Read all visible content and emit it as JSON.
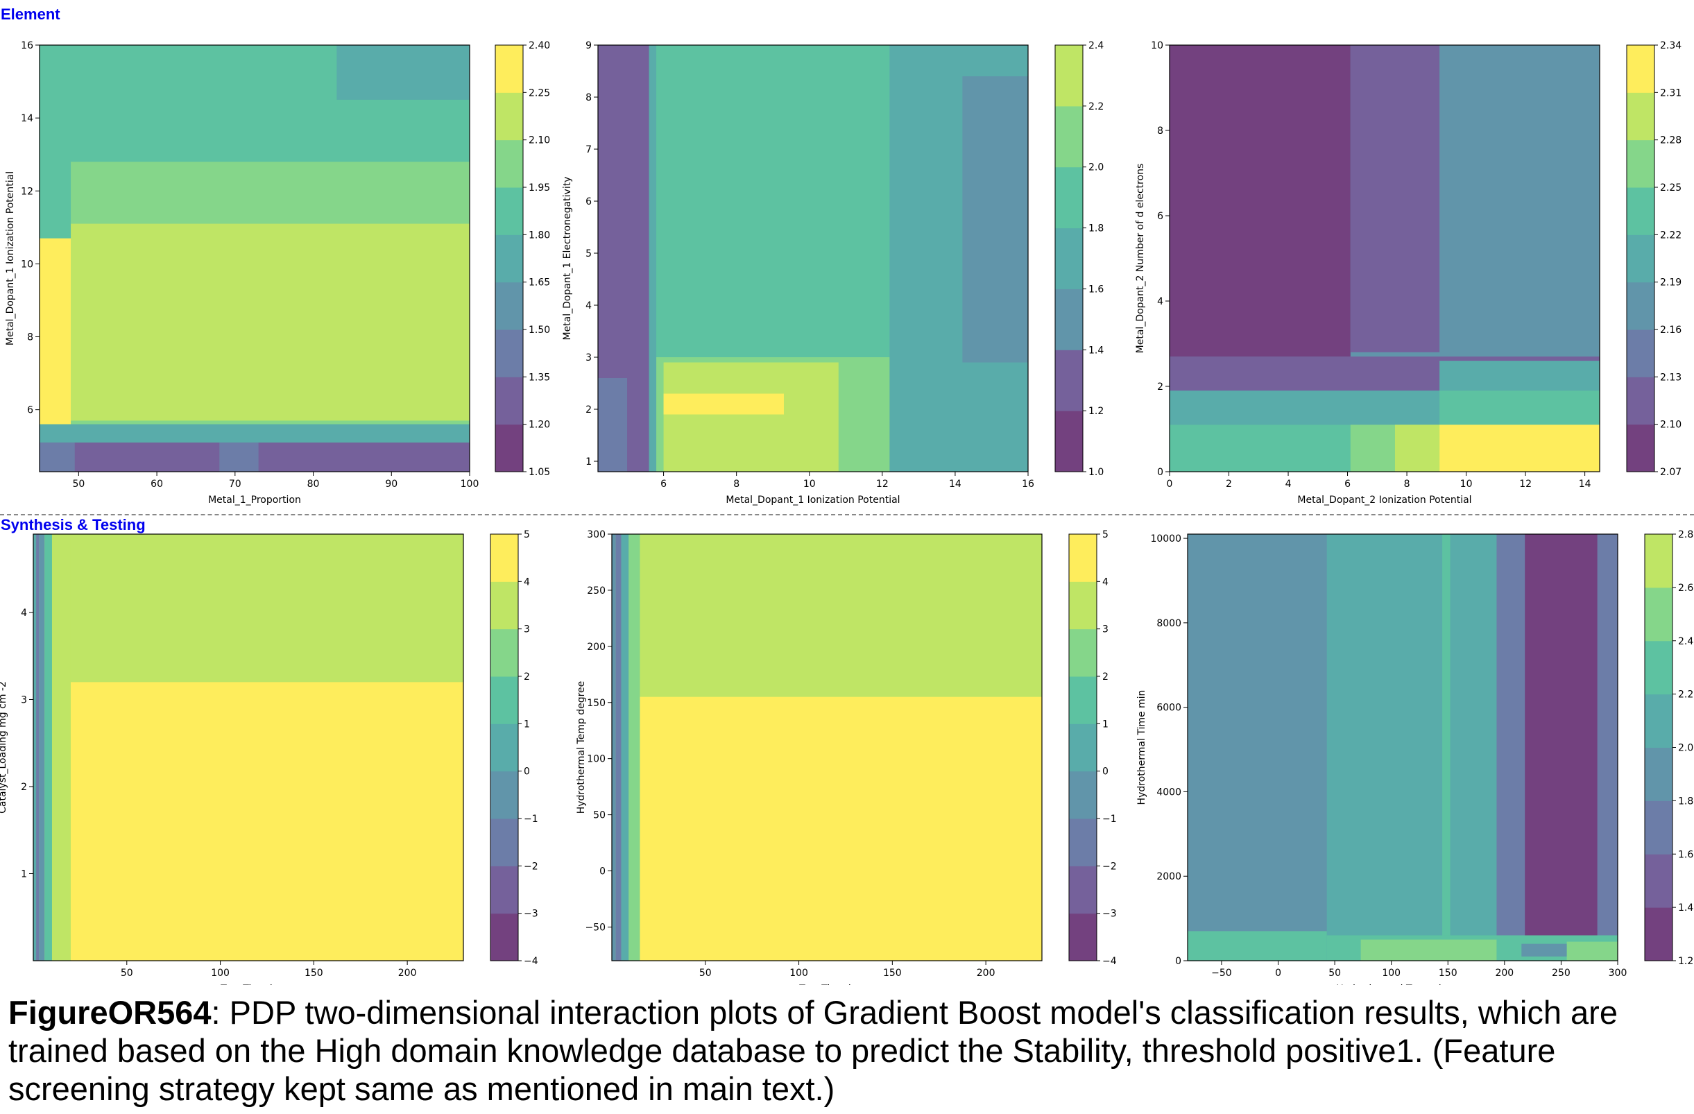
{
  "sections": [
    {
      "label": "Synthesis & Testing"
    }
  ],
  "caption": {
    "figure_id": "FigureOR564",
    "text": ": PDP two-dimensional interaction plots of Gradient Boost model's classification results, which are trained based on the High domain knowledge database to predict the Stability, threshold positive1. (Feature screening strategy kept same as mentioned in main text.)"
  },
  "colors": {
    "section_label": "#0000ee",
    "viridis_alpha": [
      "#440154",
      "#472c7a",
      "#3b518b",
      "#2c718e",
      "#21908d",
      "#27ad81",
      "#5cc863",
      "#aadc32",
      "#fde725"
    ],
    "alpha": 0.75
  },
  "chart_data": [
    {
      "type": "heatmap",
      "xlabel": "Metal_1_Proportion",
      "ylabel": "Metal_Dopant_1 Ionization Potential",
      "xlim": [
        45,
        100
      ],
      "ylim": [
        4.3,
        16
      ],
      "xticks": [
        "50",
        "60",
        "70",
        "80",
        "90",
        "100"
      ],
      "xtick_values": [
        50,
        60,
        70,
        80,
        90,
        100
      ],
      "yticks": [
        "6",
        "8",
        "10",
        "12",
        "14",
        "16"
      ],
      "ytick_values": [
        6,
        8,
        10,
        12,
        14,
        16
      ],
      "colorbar_ticks": [
        "1.05",
        "1.20",
        "1.35",
        "1.50",
        "1.65",
        "1.80",
        "1.95",
        "2.10",
        "2.25",
        "2.40"
      ],
      "regions": [
        {
          "x": [
            45,
            100
          ],
          "y": [
            4.3,
            16
          ],
          "level": 5
        },
        {
          "x": [
            83,
            100
          ],
          "y": [
            14.5,
            16
          ],
          "level": 4
        },
        {
          "x": [
            49,
            100
          ],
          "y": [
            5.6,
            12.8
          ],
          "level": 6
        },
        {
          "x": [
            49,
            100
          ],
          "y": [
            5.7,
            11.1
          ],
          "level": 7
        },
        {
          "x": [
            45,
            49
          ],
          "y": [
            5.6,
            10.7
          ],
          "level": 8
        },
        {
          "x": [
            45,
            100
          ],
          "y": [
            5.1,
            5.6
          ],
          "level": 4
        },
        {
          "x": [
            45,
            100
          ],
          "y": [
            4.3,
            5.1
          ],
          "level": 1
        },
        {
          "x": [
            45,
            49.5
          ],
          "y": [
            4.3,
            5.1
          ],
          "level": 2
        },
        {
          "x": [
            68,
            73
          ],
          "y": [
            4.3,
            5.1
          ],
          "level": 2
        }
      ]
    },
    {
      "type": "heatmap",
      "xlabel": "Metal_Dopant_1 Ionization Potential",
      "ylabel": "Metal_Dopant_1 Electronegativity",
      "xlim": [
        4.2,
        16
      ],
      "ylim": [
        0.8,
        9
      ],
      "xticks": [
        "6",
        "8",
        "10",
        "12",
        "14",
        "16"
      ],
      "xtick_values": [
        6,
        8,
        10,
        12,
        14,
        16
      ],
      "yticks": [
        "1",
        "2",
        "3",
        "4",
        "5",
        "6",
        "7",
        "8",
        "9"
      ],
      "ytick_values": [
        1,
        2,
        3,
        4,
        5,
        6,
        7,
        8,
        9
      ],
      "colorbar_ticks": [
        "1.0",
        "1.2",
        "1.4",
        "1.6",
        "1.8",
        "2.0",
        "2.2",
        "2.4"
      ],
      "regions": [
        {
          "x": [
            4.2,
            16
          ],
          "y": [
            0.8,
            9
          ],
          "level": 5
        },
        {
          "x": [
            12.2,
            16
          ],
          "y": [
            0.8,
            9
          ],
          "level": 4
        },
        {
          "x": [
            14.2,
            16
          ],
          "y": [
            2.9,
            8.4
          ],
          "level": 3
        },
        {
          "x": [
            5.7,
            12.2
          ],
          "y": [
            0.8,
            3.0
          ],
          "level": 6
        },
        {
          "x": [
            6.0,
            10.8
          ],
          "y": [
            0.8,
            2.9
          ],
          "level": 7
        },
        {
          "x": [
            6.0,
            9.3
          ],
          "y": [
            1.9,
            2.3
          ],
          "level": 8
        },
        {
          "x": [
            5.6,
            5.8
          ],
          "y": [
            0.8,
            9
          ],
          "level": 4
        },
        {
          "x": [
            4.2,
            5.6
          ],
          "y": [
            0.8,
            9
          ],
          "level": 1
        },
        {
          "x": [
            4.2,
            5.0
          ],
          "y": [
            0.8,
            2.6
          ],
          "level": 2
        }
      ]
    },
    {
      "type": "heatmap",
      "xlabel": "Metal_Dopant_2 Ionization Potential",
      "ylabel": "Metal_Dopant_2 Number of d electrons",
      "xlim": [
        0,
        14.5
      ],
      "ylim": [
        0,
        10
      ],
      "xticks": [
        "0",
        "2",
        "4",
        "6",
        "8",
        "10",
        "12",
        "14"
      ],
      "xtick_values": [
        0,
        2,
        4,
        6,
        8,
        10,
        12,
        14
      ],
      "yticks": [
        "0",
        "2",
        "4",
        "6",
        "8",
        "10"
      ],
      "ytick_values": [
        0,
        2,
        4,
        6,
        8,
        10
      ],
      "colorbar_ticks": [
        "2.07",
        "2.10",
        "2.13",
        "2.16",
        "2.19",
        "2.22",
        "2.25",
        "2.28",
        "2.31",
        "2.34"
      ],
      "regions": [
        {
          "x": [
            0,
            14.5
          ],
          "y": [
            0,
            10
          ],
          "level": 3
        },
        {
          "x": [
            0,
            6.1
          ],
          "y": [
            2.7,
            10
          ],
          "level": 0
        },
        {
          "x": [
            6.1,
            9.1
          ],
          "y": [
            2.8,
            10
          ],
          "level": 1
        },
        {
          "x": [
            0,
            14.5
          ],
          "y": [
            1.9,
            2.7
          ],
          "level": 1
        },
        {
          "x": [
            9.1,
            14.5
          ],
          "y": [
            1.9,
            2.6
          ],
          "level": 4
        },
        {
          "x": [
            0,
            14.5
          ],
          "y": [
            1.1,
            1.9
          ],
          "level": 4
        },
        {
          "x": [
            9.1,
            14.5
          ],
          "y": [
            1.1,
            1.9
          ],
          "level": 5
        },
        {
          "x": [
            0,
            14.5
          ],
          "y": [
            0,
            1.1
          ],
          "level": 5
        },
        {
          "x": [
            6.1,
            14.5
          ],
          "y": [
            0,
            1.1
          ],
          "level": 6
        },
        {
          "x": [
            7.6,
            9.1
          ],
          "y": [
            0,
            1.1
          ],
          "level": 7
        },
        {
          "x": [
            9.1,
            14.5
          ],
          "y": [
            0,
            1.1
          ],
          "level": 8
        }
      ]
    },
    {
      "type": "heatmap",
      "xlabel": "Test Time h",
      "ylabel": "Catalyst_Loading mg cm -2",
      "xlim": [
        0,
        230
      ],
      "ylim": [
        0,
        4.9
      ],
      "xticks": [
        "50",
        "100",
        "150",
        "200"
      ],
      "xtick_values": [
        50,
        100,
        150,
        200
      ],
      "yticks": [
        "1",
        "2",
        "3",
        "4"
      ],
      "ytick_values": [
        1,
        2,
        3,
        4
      ],
      "colorbar_ticks": [
        "−4",
        "−3",
        "−2",
        "−1",
        "0",
        "1",
        "2",
        "3",
        "4",
        "5"
      ],
      "regions": [
        {
          "x": [
            0,
            230
          ],
          "y": [
            0,
            4.9
          ],
          "level": 7
        },
        {
          "x": [
            20,
            230
          ],
          "y": [
            0,
            3.2
          ],
          "level": 8
        },
        {
          "x": [
            10,
            20
          ],
          "y": [
            0,
            4.9
          ],
          "level": 7
        },
        {
          "x": [
            6,
            10
          ],
          "y": [
            0,
            4.9
          ],
          "level": 5
        },
        {
          "x": [
            3,
            6
          ],
          "y": [
            0,
            4.9
          ],
          "level": 3
        },
        {
          "x": [
            1.5,
            3
          ],
          "y": [
            0,
            4.9
          ],
          "level": 2
        },
        {
          "x": [
            0,
            1.5
          ],
          "y": [
            0,
            4.9
          ],
          "level": 4
        }
      ]
    },
    {
      "type": "heatmap",
      "xlabel": "Test Time h",
      "ylabel": "Hydrothermal Temp degree",
      "xlim": [
        0,
        230
      ],
      "ylim": [
        -80,
        300
      ],
      "xticks": [
        "50",
        "100",
        "150",
        "200"
      ],
      "xtick_values": [
        50,
        100,
        150,
        200
      ],
      "yticks": [
        "−50",
        "0",
        "50",
        "100",
        "150",
        "200",
        "250",
        "300"
      ],
      "ytick_values": [
        -50,
        0,
        50,
        100,
        150,
        200,
        250,
        300
      ],
      "colorbar_ticks": [
        "−4",
        "−3",
        "−2",
        "−1",
        "0",
        "1",
        "2",
        "3",
        "4",
        "5"
      ],
      "regions": [
        {
          "x": [
            0,
            230
          ],
          "y": [
            -80,
            300
          ],
          "level": 7
        },
        {
          "x": [
            15,
            230
          ],
          "y": [
            -80,
            155
          ],
          "level": 8
        },
        {
          "x": [
            9,
            15
          ],
          "y": [
            -80,
            300
          ],
          "level": 6
        },
        {
          "x": [
            5,
            9
          ],
          "y": [
            -80,
            300
          ],
          "level": 4
        },
        {
          "x": [
            2,
            5
          ],
          "y": [
            -80,
            300
          ],
          "level": 2
        },
        {
          "x": [
            0,
            2
          ],
          "y": [
            -80,
            300
          ],
          "level": 3
        }
      ]
    },
    {
      "type": "heatmap",
      "xlabel": "Hydrothermal Temp degree",
      "ylabel": "Hydrothermal Time min",
      "xlim": [
        -80,
        300
      ],
      "ylim": [
        0,
        10100
      ],
      "xticks": [
        "−50",
        "0",
        "50",
        "100",
        "150",
        "200",
        "250",
        "300"
      ],
      "xtick_values": [
        -50,
        0,
        50,
        100,
        150,
        200,
        250,
        300
      ],
      "yticks": [
        "0",
        "2000",
        "4000",
        "6000",
        "8000",
        "10000"
      ],
      "ytick_values": [
        0,
        2000,
        4000,
        6000,
        8000,
        10000
      ],
      "colorbar_ticks": [
        "1.2",
        "1.4",
        "1.6",
        "1.8",
        "2.0",
        "2.2",
        "2.4",
        "2.6",
        "2.8"
      ],
      "regions": [
        {
          "x": [
            -80,
            300
          ],
          "y": [
            0,
            10100
          ],
          "level": 3
        },
        {
          "x": [
            43,
            300
          ],
          "y": [
            0,
            10100
          ],
          "level": 4
        },
        {
          "x": [
            145,
            152
          ],
          "y": [
            0,
            10100
          ],
          "level": 5
        },
        {
          "x": [
            193,
            300
          ],
          "y": [
            600,
            10100
          ],
          "level": 2
        },
        {
          "x": [
            218,
            282
          ],
          "y": [
            600,
            10100
          ],
          "level": 0
        },
        {
          "x": [
            -80,
            43
          ],
          "y": [
            0,
            700
          ],
          "level": 5
        },
        {
          "x": [
            43,
            300
          ],
          "y": [
            0,
            600
          ],
          "level": 5
        },
        {
          "x": [
            73,
            193
          ],
          "y": [
            0,
            500
          ],
          "level": 6
        },
        {
          "x": [
            255,
            300
          ],
          "y": [
            0,
            450
          ],
          "level": 6
        },
        {
          "x": [
            215,
            255
          ],
          "y": [
            100,
            400
          ],
          "level": 3
        }
      ]
    }
  ]
}
